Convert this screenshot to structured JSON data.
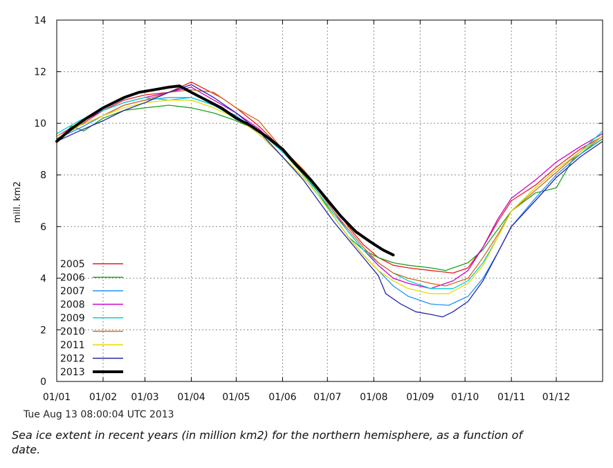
{
  "chart_data": {
    "type": "line",
    "title": "",
    "xlabel": "",
    "ylabel": "mill. km2",
    "ylim": [
      0,
      14
    ],
    "yticks": [
      0,
      2,
      4,
      6,
      8,
      10,
      12,
      14
    ],
    "xlim": [
      0,
      365
    ],
    "x_unit": "day of year",
    "xticks": [
      {
        "day": 0,
        "label": "01/01"
      },
      {
        "day": 31,
        "label": "01/02"
      },
      {
        "day": 59,
        "label": "01/03"
      },
      {
        "day": 90,
        "label": "01/04"
      },
      {
        "day": 120,
        "label": "01/05"
      },
      {
        "day": 151,
        "label": "01/06"
      },
      {
        "day": 181,
        "label": "01/07"
      },
      {
        "day": 212,
        "label": "01/08"
      },
      {
        "day": 243,
        "label": "01/09"
      },
      {
        "day": 273,
        "label": "01/10"
      },
      {
        "day": 304,
        "label": "01/11"
      },
      {
        "day": 334,
        "label": "01/12"
      }
    ],
    "grid": true,
    "legend_position": "bottom-left",
    "series": [
      {
        "name": "2005",
        "color": "#e41a1c",
        "points": [
          [
            0,
            9.4
          ],
          [
            15,
            9.9
          ],
          [
            31,
            10.5
          ],
          [
            45,
            10.9
          ],
          [
            59,
            11.1
          ],
          [
            75,
            11.2
          ],
          [
            90,
            11.6
          ],
          [
            100,
            11.3
          ],
          [
            110,
            11.0
          ],
          [
            120,
            10.6
          ],
          [
            135,
            9.9
          ],
          [
            151,
            9.0
          ],
          [
            165,
            8.2
          ],
          [
            175,
            7.5
          ],
          [
            185,
            6.8
          ],
          [
            195,
            6.0
          ],
          [
            205,
            5.3
          ],
          [
            215,
            4.8
          ],
          [
            225,
            4.5
          ],
          [
            235,
            4.4
          ],
          [
            250,
            4.3
          ],
          [
            265,
            4.2
          ],
          [
            275,
            4.4
          ],
          [
            285,
            5.2
          ],
          [
            295,
            6.2
          ],
          [
            304,
            7.0
          ],
          [
            320,
            7.6
          ],
          [
            334,
            8.3
          ],
          [
            350,
            9.0
          ],
          [
            365,
            9.5
          ]
        ]
      },
      {
        "name": "2006",
        "color": "#1aa31a",
        "points": [
          [
            0,
            9.3
          ],
          [
            10,
            9.9
          ],
          [
            18,
            9.7
          ],
          [
            31,
            10.2
          ],
          [
            45,
            10.5
          ],
          [
            59,
            10.6
          ],
          [
            75,
            10.7
          ],
          [
            90,
            10.6
          ],
          [
            105,
            10.4
          ],
          [
            120,
            10.1
          ],
          [
            135,
            9.7
          ],
          [
            151,
            8.9
          ],
          [
            165,
            8.0
          ],
          [
            175,
            7.3
          ],
          [
            185,
            6.4
          ],
          [
            195,
            5.6
          ],
          [
            205,
            5.1
          ],
          [
            215,
            4.8
          ],
          [
            225,
            4.6
          ],
          [
            235,
            4.5
          ],
          [
            250,
            4.4
          ],
          [
            260,
            4.3
          ],
          [
            275,
            4.6
          ],
          [
            285,
            5.1
          ],
          [
            295,
            5.9
          ],
          [
            304,
            6.6
          ],
          [
            320,
            7.3
          ],
          [
            334,
            7.5
          ],
          [
            345,
            8.6
          ],
          [
            365,
            9.4
          ]
        ]
      },
      {
        "name": "2007",
        "color": "#1e90ff",
        "points": [
          [
            0,
            9.4
          ],
          [
            15,
            9.8
          ],
          [
            31,
            10.3
          ],
          [
            45,
            10.7
          ],
          [
            59,
            10.9
          ],
          [
            75,
            11.0
          ],
          [
            90,
            11.0
          ],
          [
            105,
            10.7
          ],
          [
            120,
            10.3
          ],
          [
            135,
            9.6
          ],
          [
            151,
            8.7
          ],
          [
            165,
            7.9
          ],
          [
            175,
            7.2
          ],
          [
            185,
            6.4
          ],
          [
            195,
            5.6
          ],
          [
            205,
            4.9
          ],
          [
            215,
            4.3
          ],
          [
            225,
            3.7
          ],
          [
            235,
            3.3
          ],
          [
            250,
            3.0
          ],
          [
            262,
            2.95
          ],
          [
            275,
            3.3
          ],
          [
            285,
            4.0
          ],
          [
            295,
            5.0
          ],
          [
            304,
            6.0
          ],
          [
            320,
            7.1
          ],
          [
            334,
            8.0
          ],
          [
            350,
            8.8
          ],
          [
            365,
            9.5
          ]
        ]
      },
      {
        "name": "2008",
        "color": "#cc00cc",
        "points": [
          [
            0,
            9.5
          ],
          [
            15,
            10.0
          ],
          [
            31,
            10.5
          ],
          [
            45,
            10.8
          ],
          [
            59,
            11.0
          ],
          [
            75,
            11.2
          ],
          [
            90,
            11.4
          ],
          [
            105,
            10.9
          ],
          [
            120,
            10.4
          ],
          [
            135,
            9.8
          ],
          [
            151,
            8.9
          ],
          [
            165,
            8.1
          ],
          [
            175,
            7.4
          ],
          [
            185,
            6.6
          ],
          [
            195,
            5.8
          ],
          [
            205,
            5.1
          ],
          [
            215,
            4.5
          ],
          [
            225,
            4.0
          ],
          [
            235,
            3.8
          ],
          [
            250,
            3.6
          ],
          [
            265,
            3.9
          ],
          [
            275,
            4.3
          ],
          [
            285,
            5.2
          ],
          [
            295,
            6.3
          ],
          [
            304,
            7.1
          ],
          [
            320,
            7.8
          ],
          [
            334,
            8.5
          ],
          [
            350,
            9.1
          ],
          [
            365,
            9.6
          ]
        ]
      },
      {
        "name": "2009",
        "color": "#00d0d0",
        "points": [
          [
            0,
            9.6
          ],
          [
            15,
            10.1
          ],
          [
            31,
            10.5
          ],
          [
            45,
            10.8
          ],
          [
            59,
            11.0
          ],
          [
            75,
            10.9
          ],
          [
            90,
            11.0
          ],
          [
            105,
            10.7
          ],
          [
            120,
            10.2
          ],
          [
            135,
            9.7
          ],
          [
            151,
            8.9
          ],
          [
            165,
            8.1
          ],
          [
            175,
            7.3
          ],
          [
            185,
            6.5
          ],
          [
            195,
            5.8
          ],
          [
            205,
            5.1
          ],
          [
            215,
            4.6
          ],
          [
            225,
            4.2
          ],
          [
            235,
            3.9
          ],
          [
            250,
            3.6
          ],
          [
            265,
            3.6
          ],
          [
            275,
            3.9
          ],
          [
            285,
            4.6
          ],
          [
            295,
            5.6
          ],
          [
            304,
            6.6
          ],
          [
            320,
            7.5
          ],
          [
            334,
            8.2
          ],
          [
            350,
            8.9
          ],
          [
            365,
            9.7
          ]
        ]
      },
      {
        "name": "2010",
        "color": "#d2691e",
        "points": [
          [
            0,
            9.4
          ],
          [
            15,
            9.9
          ],
          [
            31,
            10.3
          ],
          [
            45,
            10.7
          ],
          [
            59,
            10.9
          ],
          [
            75,
            11.2
          ],
          [
            90,
            11.3
          ],
          [
            105,
            11.2
          ],
          [
            120,
            10.6
          ],
          [
            135,
            10.1
          ],
          [
            151,
            9.0
          ],
          [
            165,
            8.2
          ],
          [
            175,
            7.4
          ],
          [
            185,
            6.6
          ],
          [
            195,
            5.9
          ],
          [
            205,
            5.2
          ],
          [
            215,
            4.6
          ],
          [
            225,
            4.2
          ],
          [
            235,
            4.0
          ],
          [
            250,
            3.8
          ],
          [
            260,
            3.7
          ],
          [
            275,
            4.0
          ],
          [
            285,
            4.8
          ],
          [
            295,
            5.7
          ],
          [
            304,
            6.6
          ],
          [
            320,
            7.4
          ],
          [
            334,
            8.1
          ],
          [
            350,
            8.9
          ],
          [
            365,
            9.5
          ]
        ]
      },
      {
        "name": "2011",
        "color": "#e8d800",
        "points": [
          [
            0,
            9.5
          ],
          [
            15,
            9.9
          ],
          [
            31,
            10.3
          ],
          [
            45,
            10.6
          ],
          [
            59,
            10.8
          ],
          [
            75,
            10.9
          ],
          [
            90,
            10.9
          ],
          [
            105,
            10.6
          ],
          [
            120,
            10.2
          ],
          [
            135,
            9.6
          ],
          [
            151,
            8.7
          ],
          [
            165,
            7.9
          ],
          [
            175,
            7.2
          ],
          [
            185,
            6.4
          ],
          [
            195,
            5.6
          ],
          [
            205,
            4.9
          ],
          [
            215,
            4.3
          ],
          [
            225,
            3.9
          ],
          [
            235,
            3.6
          ],
          [
            250,
            3.4
          ],
          [
            262,
            3.4
          ],
          [
            275,
            3.8
          ],
          [
            285,
            4.5
          ],
          [
            295,
            5.6
          ],
          [
            304,
            6.6
          ],
          [
            320,
            7.5
          ],
          [
            334,
            8.2
          ],
          [
            350,
            8.9
          ],
          [
            365,
            9.5
          ]
        ]
      },
      {
        "name": "2012",
        "color": "#2222aa",
        "points": [
          [
            0,
            9.3
          ],
          [
            15,
            9.7
          ],
          [
            31,
            10.1
          ],
          [
            45,
            10.5
          ],
          [
            59,
            10.8
          ],
          [
            75,
            11.2
          ],
          [
            90,
            11.5
          ],
          [
            105,
            11.0
          ],
          [
            120,
            10.4
          ],
          [
            135,
            9.7
          ],
          [
            151,
            8.7
          ],
          [
            165,
            7.8
          ],
          [
            175,
            7.0
          ],
          [
            185,
            6.2
          ],
          [
            195,
            5.5
          ],
          [
            205,
            4.8
          ],
          [
            215,
            4.1
          ],
          [
            220,
            3.4
          ],
          [
            230,
            3.0
          ],
          [
            240,
            2.7
          ],
          [
            250,
            2.6
          ],
          [
            258,
            2.5
          ],
          [
            265,
            2.7
          ],
          [
            275,
            3.1
          ],
          [
            285,
            3.9
          ],
          [
            295,
            5.0
          ],
          [
            304,
            6.0
          ],
          [
            320,
            7.0
          ],
          [
            334,
            7.9
          ],
          [
            350,
            8.7
          ],
          [
            365,
            9.3
          ]
        ]
      },
      {
        "name": "2013",
        "color": "#000000",
        "points": [
          [
            0,
            9.3
          ],
          [
            10,
            9.8
          ],
          [
            20,
            10.2
          ],
          [
            31,
            10.6
          ],
          [
            45,
            11.0
          ],
          [
            55,
            11.2
          ],
          [
            65,
            11.3
          ],
          [
            75,
            11.4
          ],
          [
            82,
            11.45
          ],
          [
            90,
            11.2
          ],
          [
            100,
            10.9
          ],
          [
            110,
            10.6
          ],
          [
            120,
            10.2
          ],
          [
            130,
            9.9
          ],
          [
            140,
            9.5
          ],
          [
            151,
            9.0
          ],
          [
            160,
            8.4
          ],
          [
            170,
            7.8
          ],
          [
            180,
            7.1
          ],
          [
            190,
            6.4
          ],
          [
            200,
            5.8
          ],
          [
            210,
            5.4
          ],
          [
            218,
            5.1
          ],
          [
            225,
            4.9
          ]
        ]
      }
    ]
  },
  "timestamp": "Tue Aug 13 08:00:04 UTC 2013",
  "caption": "Sea ice extent in recent years (in million km2) for the northern hemisphere, as a function of date."
}
